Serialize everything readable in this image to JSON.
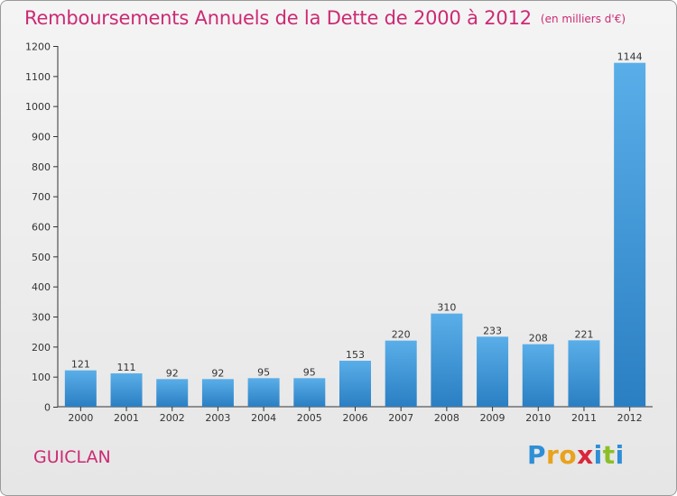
{
  "title": "Remboursements Annuels de la Dette de 2000 à 2012",
  "unit": "(en milliers d'€)",
  "commune": "GUICLAN",
  "brand": {
    "letters": [
      "P",
      "r",
      "o",
      "x",
      "i",
      "t",
      "i"
    ],
    "colors": [
      "#2f8fd6",
      "#e9a21c",
      "#e9a21c",
      "#d9263b",
      "#2f8fd6",
      "#8cbf26",
      "#2f8fd6"
    ]
  },
  "colors": {
    "title": "#cc2a74",
    "bar_light": "#5aaee8",
    "bar_dark": "#2a7fc3"
  },
  "chart_data": {
    "type": "bar",
    "title": "Remboursements Annuels de la Dette de 2000 à 2012",
    "xlabel": "",
    "ylabel": "",
    "categories": [
      "2000",
      "2001",
      "2002",
      "2003",
      "2004",
      "2005",
      "2006",
      "2007",
      "2008",
      "2009",
      "2010",
      "2011",
      "2012"
    ],
    "values": [
      121,
      111,
      92,
      92,
      95,
      95,
      153,
      220,
      310,
      233,
      208,
      221,
      1144
    ],
    "ylim": [
      0,
      1200
    ],
    "yticks": [
      0,
      100,
      200,
      300,
      400,
      500,
      600,
      700,
      800,
      900,
      1000,
      1100,
      1200
    ],
    "grid": false
  }
}
